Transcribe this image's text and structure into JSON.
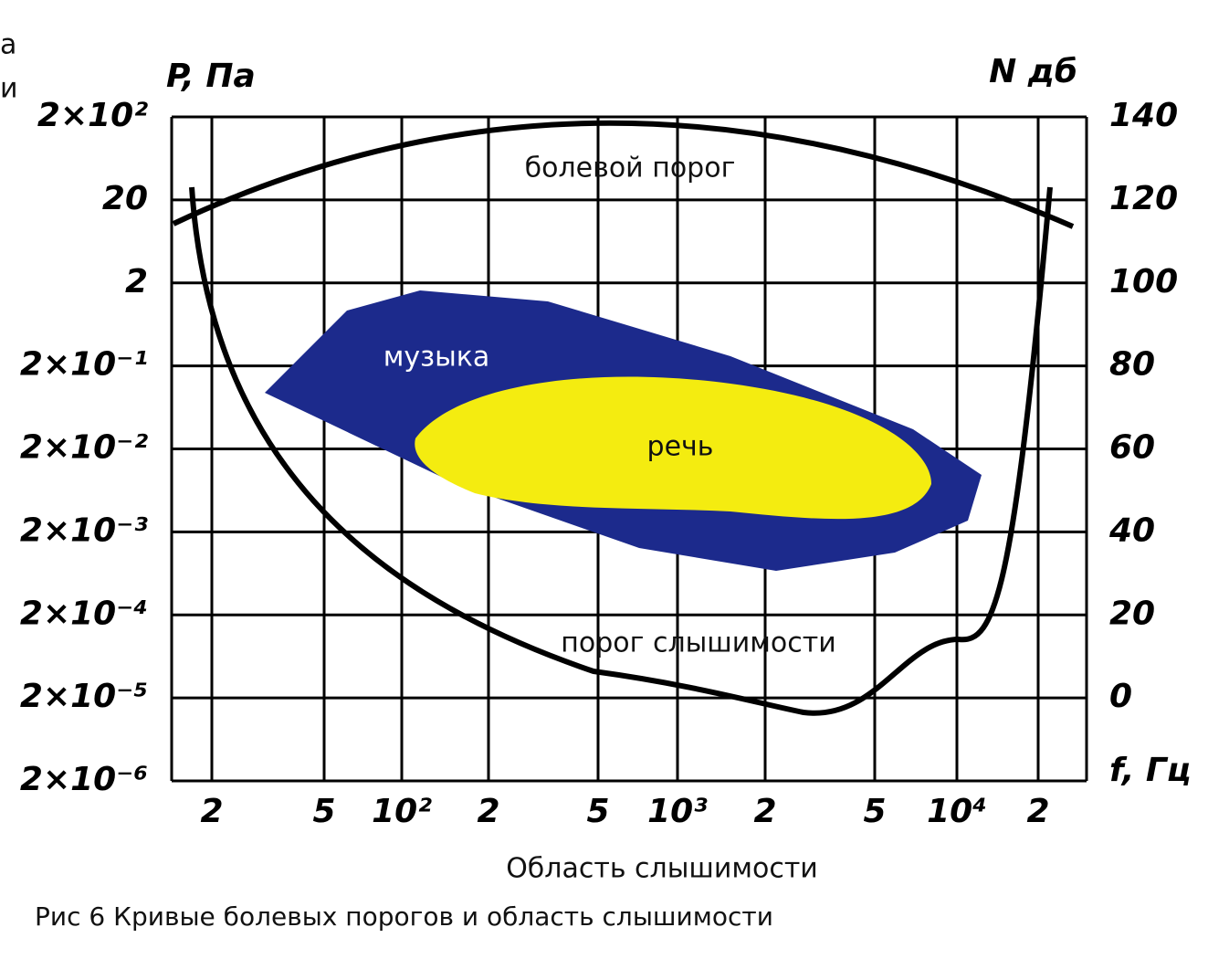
{
  "corner_fragments": [
    "а",
    "и"
  ],
  "left_axis": {
    "title": "P, Па",
    "labels": [
      "2×10²",
      "20",
      "2",
      "2×10⁻¹",
      "2×10⁻²",
      "2×10⁻³",
      "2×10⁻⁴",
      "2×10⁻⁵",
      "2×10⁻⁶"
    ]
  },
  "right_axis": {
    "title": "N дб",
    "labels": [
      "140",
      "120",
      "100",
      "80",
      "60",
      "40",
      "20",
      "0"
    ],
    "unit_label": "f, Гц"
  },
  "x_axis": {
    "labels": [
      "2",
      "5",
      "10²",
      "2",
      "5",
      "10³",
      "2",
      "5",
      "10⁴",
      "2"
    ],
    "title": "Область слышимости"
  },
  "regions": {
    "pain": "болевой порог",
    "music": "музыка",
    "speech": "речь",
    "hearing": "порог слышимости"
  },
  "caption": "Рис 6 Кривые болевых порогов и область слышимости"
}
